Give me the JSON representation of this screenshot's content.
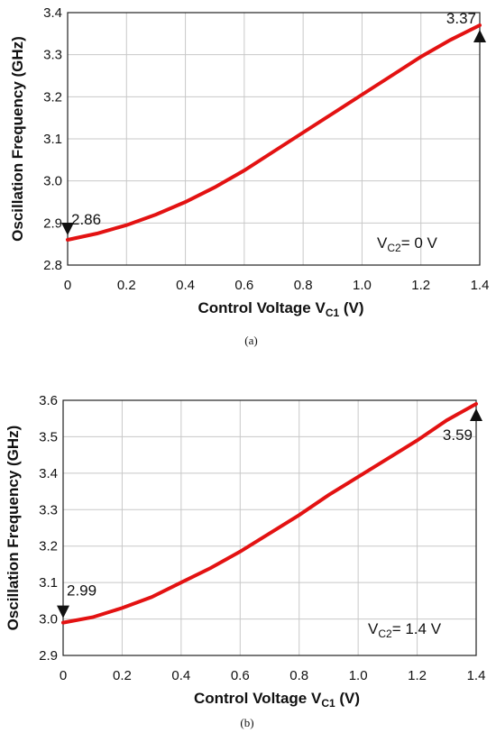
{
  "chart_data": [
    {
      "type": "line",
      "panel_label": "(a)",
      "xlabel": "Control Voltage V",
      "xlabel_sub": "C1",
      "xlabel_tail": " (V)",
      "ylabel": "Oscillation Frequency (GHz)",
      "xlim": [
        0,
        1.4
      ],
      "ylim": [
        2.8,
        3.4
      ],
      "xticks": [
        "0",
        "0.2",
        "0.4",
        "0.6",
        "0.8",
        "1.0",
        "1.2",
        "1.4"
      ],
      "yticks": [
        "2.8",
        "2.9",
        "3.0",
        "3.1",
        "3.2",
        "3.3",
        "3.4"
      ],
      "grid": true,
      "series": [
        {
          "color": "#e31212",
          "x": [
            0,
            0.1,
            0.2,
            0.3,
            0.4,
            0.5,
            0.6,
            0.7,
            0.8,
            0.9,
            1.0,
            1.1,
            1.2,
            1.3,
            1.4
          ],
          "y": [
            2.86,
            2.875,
            2.895,
            2.92,
            2.95,
            2.985,
            3.025,
            3.07,
            3.115,
            3.16,
            3.205,
            3.25,
            3.295,
            3.335,
            3.37
          ]
        }
      ],
      "annotations": [
        {
          "text": "2.86",
          "x": 0,
          "y": 2.86,
          "marker": "down"
        },
        {
          "text": "3.37",
          "x": 1.4,
          "y": 3.37,
          "marker": "up"
        }
      ],
      "condition": {
        "main": "V",
        "sub": "C2",
        "tail": "= 0 V"
      }
    },
    {
      "type": "line",
      "panel_label": "(b)",
      "xlabel": "Control Voltage V",
      "xlabel_sub": "C1",
      "xlabel_tail": " (V)",
      "ylabel": "Oscillation Frequency (GHz)",
      "xlim": [
        0,
        1.4
      ],
      "ylim": [
        2.9,
        3.6
      ],
      "xticks": [
        "0",
        "0.2",
        "0.4",
        "0.6",
        "0.8",
        "1.0",
        "1.2",
        "1.4"
      ],
      "yticks": [
        "2.9",
        "3.0",
        "3.1",
        "3.2",
        "3.3",
        "3.4",
        "3.5",
        "3.6"
      ],
      "grid": true,
      "series": [
        {
          "color": "#e31212",
          "x": [
            0,
            0.1,
            0.2,
            0.3,
            0.4,
            0.5,
            0.6,
            0.7,
            0.8,
            0.9,
            1.0,
            1.1,
            1.2,
            1.3,
            1.4
          ],
          "y": [
            2.99,
            3.005,
            3.03,
            3.06,
            3.1,
            3.14,
            3.185,
            3.235,
            3.285,
            3.34,
            3.39,
            3.44,
            3.49,
            3.545,
            3.59
          ]
        }
      ],
      "annotations": [
        {
          "text": "2.99",
          "x": 0,
          "y": 2.99,
          "marker": "down"
        },
        {
          "text": "3.59",
          "x": 1.4,
          "y": 3.59,
          "marker": "up"
        }
      ],
      "condition": {
        "main": "V",
        "sub": "C2",
        "tail": "= 1.4 V"
      }
    }
  ]
}
